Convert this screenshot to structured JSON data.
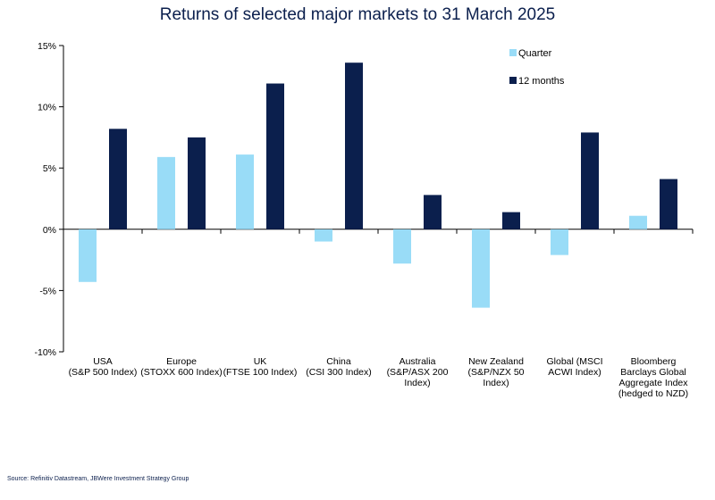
{
  "source": "Source: Refinitiv Datastream, JBWere Investment Strategy Group",
  "colors": {
    "quarter": "#99dcf7",
    "twelve_months": "#0b1f4d",
    "title": "#0b1f4d",
    "axis": "#000000"
  },
  "chart_data": {
    "type": "bar",
    "title": "Returns of selected major markets to 31 March 2025",
    "xlabel": "",
    "ylabel": "",
    "ylim": [
      -10,
      15
    ],
    "yticks": [
      15,
      10,
      5,
      0,
      -5,
      -10
    ],
    "ytick_labels": [
      "15%",
      "10%",
      "5%",
      "0%",
      "-5%",
      "-10%"
    ],
    "grid": false,
    "legend_position": "top-right",
    "categories": [
      [
        "USA",
        "(S&P 500 Index)"
      ],
      [
        "Europe",
        "(STOXX 600 Index)"
      ],
      [
        "UK",
        "(FTSE 100 Index)"
      ],
      [
        "China",
        "(CSI 300 Index)"
      ],
      [
        "Australia",
        "(S&P/ASX 200",
        "Index)"
      ],
      [
        "New Zealand",
        "(S&P/NZX 50",
        "Index)"
      ],
      [
        "Global (MSCI",
        "ACWI Index)"
      ],
      [
        "Bloomberg",
        "Barclays Global",
        "Aggregate Index",
        "(hedged to NZD)"
      ]
    ],
    "series": [
      {
        "name": "Quarter",
        "values": [
          -4.3,
          5.9,
          6.1,
          -1.0,
          -2.8,
          -6.4,
          -2.1,
          1.1
        ]
      },
      {
        "name": "12 months",
        "values": [
          8.2,
          7.5,
          11.9,
          13.6,
          2.8,
          1.4,
          7.9,
          4.1
        ]
      }
    ]
  }
}
